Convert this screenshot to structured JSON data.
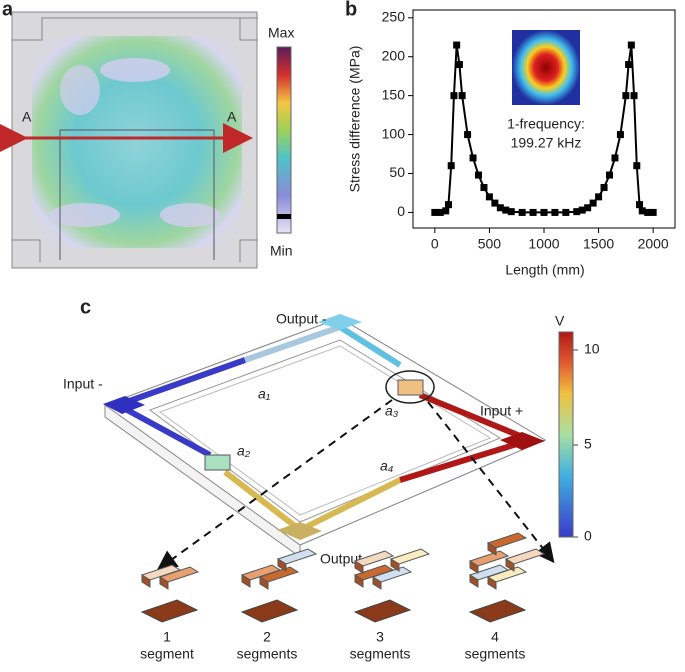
{
  "panel_a": {
    "label": "a",
    "colorbar_max": "Max",
    "colorbar_min": "Min",
    "section_left": "A",
    "section_right": "A"
  },
  "chart_data": {
    "type": "line",
    "panel_label": "b",
    "xlabel": "Length (mm)",
    "ylabel": "Stress difference (MPa)",
    "annotation": [
      "1-frequency:",
      "199.27 kHz"
    ],
    "x": [
      0,
      50,
      100,
      125,
      150,
      175,
      200,
      225,
      250,
      300,
      350,
      400,
      450,
      500,
      550,
      600,
      650,
      700,
      800,
      900,
      1000,
      1100,
      1200,
      1300,
      1350,
      1400,
      1450,
      1500,
      1550,
      1600,
      1650,
      1700,
      1750,
      1775,
      1800,
      1825,
      1850,
      1875,
      1900,
      1950,
      2000
    ],
    "series": [
      {
        "color": "#000000",
        "values": [
          0,
          0,
          2,
          10,
          60,
          150,
          215,
          190,
          150,
          100,
          70,
          48,
          32,
          20,
          12,
          6,
          3,
          1,
          0,
          0,
          0,
          0,
          0,
          1,
          3,
          6,
          12,
          20,
          32,
          48,
          70,
          100,
          150,
          190,
          215,
          150,
          60,
          10,
          2,
          0,
          0
        ]
      }
    ],
    "xlim": [
      -200,
      2200
    ],
    "ylim": [
      -20,
      260
    ],
    "xticks": [
      0,
      500,
      1000,
      1500,
      2000
    ],
    "yticks": [
      0,
      50,
      100,
      150,
      200,
      250
    ]
  },
  "panel_c": {
    "label": "c",
    "ports": [
      "Output -",
      "Input -",
      "Input +",
      "Output +"
    ],
    "arms": [
      "a₁",
      "a₂",
      "a₃",
      "a₄"
    ],
    "colorbar_title": "V",
    "colorbar_ticks": [
      "0",
      "5",
      "10"
    ],
    "segments": [
      [
        "1",
        "segment"
      ],
      [
        "2",
        "segments"
      ],
      [
        "3",
        "segments"
      ],
      [
        "4",
        "segments"
      ]
    ]
  }
}
